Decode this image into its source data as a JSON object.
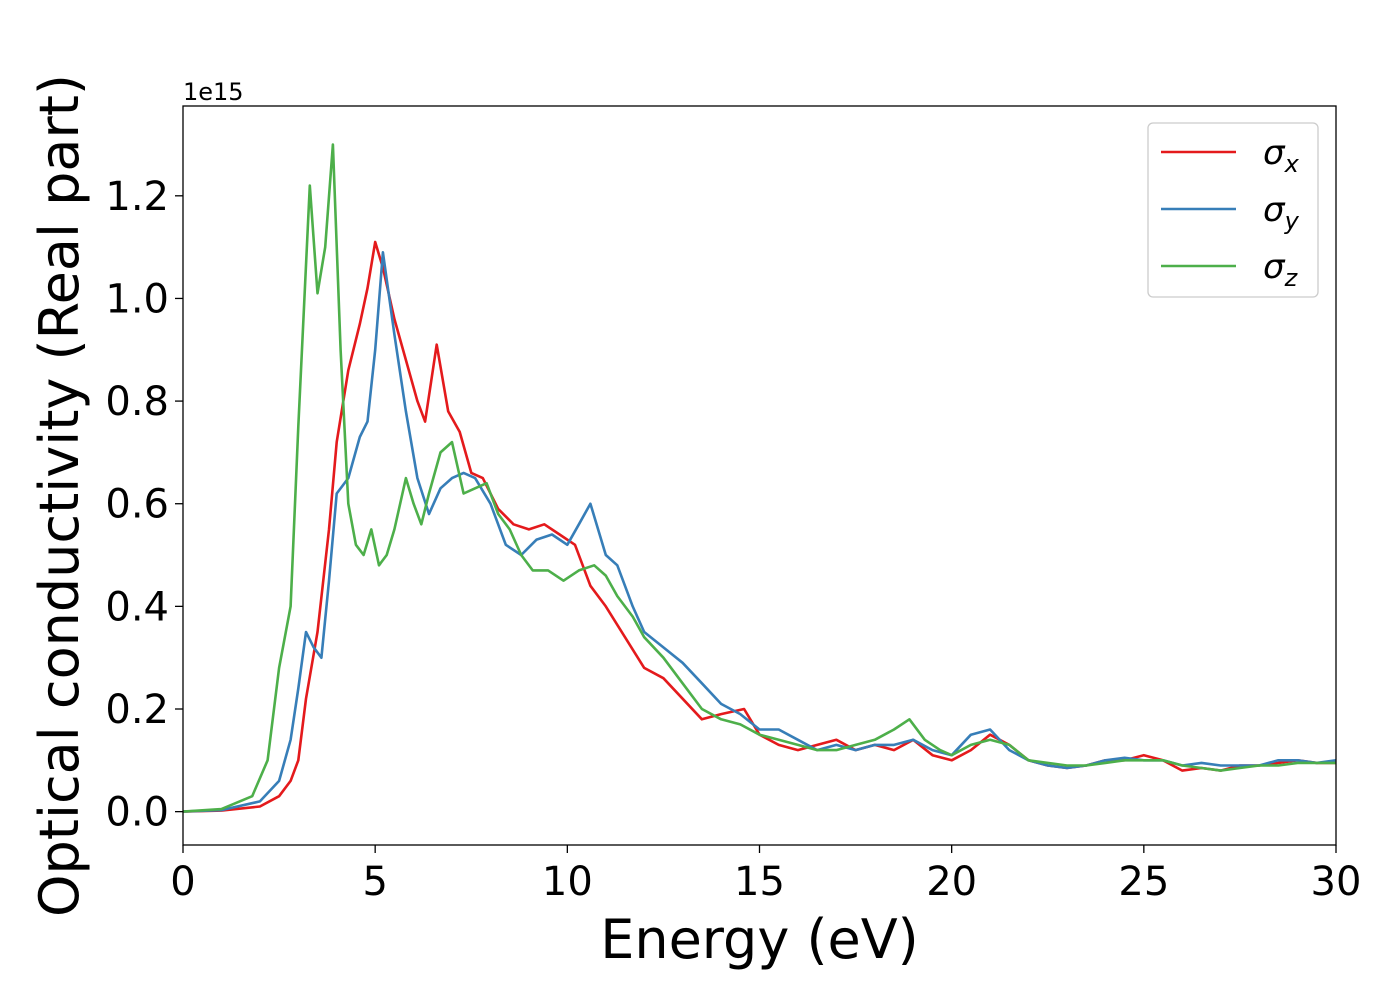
{
  "chart_data": {
    "type": "line",
    "xlabel": "Energy (eV)",
    "ylabel": "Optical conductivity (Real part)",
    "offset_text": "1e15",
    "xlim": [
      0,
      30
    ],
    "ylim": [
      -0.065,
      1.375
    ],
    "y_scale_factor": 1000000000000000.0,
    "x_ticks": [
      0,
      5,
      10,
      15,
      20,
      25,
      30
    ],
    "y_ticks": [
      0.0,
      0.2,
      0.4,
      0.6,
      0.8,
      1.0,
      1.2
    ],
    "y_tick_labels": [
      "0.0",
      "0.2",
      "0.4",
      "0.6",
      "0.8",
      "1.0",
      "1.2"
    ],
    "grid": false,
    "legend_position": "top-right",
    "series": [
      {
        "name": "σ_x",
        "color": "#e41a1c",
        "x": [
          0,
          1,
          2,
          2.5,
          2.8,
          3.0,
          3.2,
          3.5,
          3.8,
          4.0,
          4.3,
          4.6,
          4.8,
          5.0,
          5.2,
          5.5,
          5.8,
          6.1,
          6.3,
          6.6,
          6.9,
          7.2,
          7.5,
          7.8,
          8.2,
          8.6,
          9.0,
          9.4,
          9.8,
          10.2,
          10.6,
          11.0,
          11.5,
          12.0,
          12.5,
          13.0,
          13.5,
          14.0,
          14.6,
          15.0,
          15.5,
          16.0,
          16.5,
          17.0,
          17.5,
          18.0,
          18.5,
          19.0,
          19.5,
          20.0,
          20.5,
          21.0,
          21.5,
          22.0,
          22.5,
          23.0,
          23.5,
          24.0,
          24.5,
          25.0,
          25.5,
          26.0,
          26.5,
          27.0,
          27.5,
          28.0,
          28.5,
          29.0,
          29.5,
          30
        ],
        "y": [
          0.0,
          0.002,
          0.01,
          0.03,
          0.06,
          0.1,
          0.22,
          0.35,
          0.55,
          0.72,
          0.86,
          0.95,
          1.02,
          1.11,
          1.06,
          0.96,
          0.88,
          0.8,
          0.76,
          0.91,
          0.78,
          0.74,
          0.66,
          0.65,
          0.59,
          0.56,
          0.55,
          0.56,
          0.54,
          0.52,
          0.44,
          0.4,
          0.34,
          0.28,
          0.26,
          0.22,
          0.18,
          0.19,
          0.2,
          0.15,
          0.13,
          0.12,
          0.13,
          0.14,
          0.12,
          0.13,
          0.12,
          0.14,
          0.11,
          0.1,
          0.12,
          0.15,
          0.13,
          0.1,
          0.09,
          0.085,
          0.09,
          0.1,
          0.1,
          0.11,
          0.1,
          0.08,
          0.085,
          0.08,
          0.09,
          0.09,
          0.095,
          0.1,
          0.095,
          0.095
        ]
      },
      {
        "name": "σ_y",
        "color": "#377eb8",
        "x": [
          0,
          1,
          2,
          2.5,
          2.8,
          3.0,
          3.2,
          3.4,
          3.6,
          3.8,
          4.0,
          4.3,
          4.6,
          4.8,
          5.0,
          5.2,
          5.5,
          5.8,
          6.1,
          6.4,
          6.7,
          7.0,
          7.3,
          7.6,
          8.0,
          8.4,
          8.8,
          9.2,
          9.6,
          10.0,
          10.3,
          10.6,
          11.0,
          11.3,
          11.7,
          12.0,
          12.5,
          13.0,
          13.5,
          14.0,
          14.5,
          15.0,
          15.5,
          16.0,
          16.5,
          17.0,
          17.5,
          18.0,
          18.5,
          19.0,
          19.5,
          20.0,
          20.5,
          21.0,
          21.5,
          22.0,
          22.5,
          23.0,
          23.5,
          24.0,
          24.5,
          25.0,
          25.5,
          26.0,
          26.5,
          27.0,
          27.5,
          28.0,
          28.5,
          29.0,
          29.5,
          30
        ],
        "y": [
          0.0,
          0.003,
          0.02,
          0.06,
          0.14,
          0.24,
          0.35,
          0.32,
          0.3,
          0.45,
          0.62,
          0.65,
          0.73,
          0.76,
          0.9,
          1.09,
          0.93,
          0.78,
          0.65,
          0.58,
          0.63,
          0.65,
          0.66,
          0.65,
          0.6,
          0.52,
          0.5,
          0.53,
          0.54,
          0.52,
          0.56,
          0.6,
          0.5,
          0.48,
          0.4,
          0.35,
          0.32,
          0.29,
          0.25,
          0.21,
          0.19,
          0.16,
          0.16,
          0.14,
          0.12,
          0.13,
          0.12,
          0.13,
          0.13,
          0.14,
          0.12,
          0.11,
          0.15,
          0.16,
          0.12,
          0.1,
          0.09,
          0.085,
          0.09,
          0.1,
          0.105,
          0.1,
          0.1,
          0.09,
          0.095,
          0.09,
          0.09,
          0.09,
          0.1,
          0.1,
          0.095,
          0.1
        ]
      },
      {
        "name": "σ_z",
        "color": "#4daf4a",
        "x": [
          0,
          1,
          1.8,
          2.2,
          2.5,
          2.8,
          3.0,
          3.3,
          3.5,
          3.7,
          3.9,
          4.1,
          4.3,
          4.5,
          4.7,
          4.9,
          5.1,
          5.3,
          5.5,
          5.8,
          6.0,
          6.2,
          6.4,
          6.7,
          7.0,
          7.3,
          7.6,
          7.9,
          8.2,
          8.5,
          8.8,
          9.1,
          9.5,
          9.9,
          10.3,
          10.7,
          11.0,
          11.3,
          11.7,
          12.0,
          12.5,
          13.0,
          13.5,
          14.0,
          14.5,
          15.0,
          15.5,
          16.0,
          16.5,
          17.0,
          17.5,
          18.0,
          18.5,
          18.9,
          19.3,
          19.7,
          20.0,
          20.5,
          21.0,
          21.5,
          22.0,
          22.5,
          23.0,
          23.5,
          24.0,
          24.5,
          25.0,
          25.5,
          26.0,
          26.5,
          27.0,
          27.5,
          28.0,
          28.5,
          29.0,
          29.5,
          30
        ],
        "y": [
          0.0,
          0.005,
          0.03,
          0.1,
          0.28,
          0.4,
          0.75,
          1.22,
          1.01,
          1.1,
          1.3,
          0.9,
          0.6,
          0.52,
          0.5,
          0.55,
          0.48,
          0.5,
          0.55,
          0.65,
          0.6,
          0.56,
          0.62,
          0.7,
          0.72,
          0.62,
          0.63,
          0.64,
          0.58,
          0.55,
          0.5,
          0.47,
          0.47,
          0.45,
          0.47,
          0.48,
          0.46,
          0.42,
          0.38,
          0.34,
          0.3,
          0.25,
          0.2,
          0.18,
          0.17,
          0.15,
          0.14,
          0.13,
          0.12,
          0.12,
          0.13,
          0.14,
          0.16,
          0.18,
          0.14,
          0.12,
          0.11,
          0.13,
          0.14,
          0.13,
          0.1,
          0.095,
          0.09,
          0.09,
          0.095,
          0.1,
          0.1,
          0.1,
          0.09,
          0.085,
          0.08,
          0.085,
          0.09,
          0.09,
          0.095,
          0.095,
          0.095
        ]
      }
    ]
  }
}
